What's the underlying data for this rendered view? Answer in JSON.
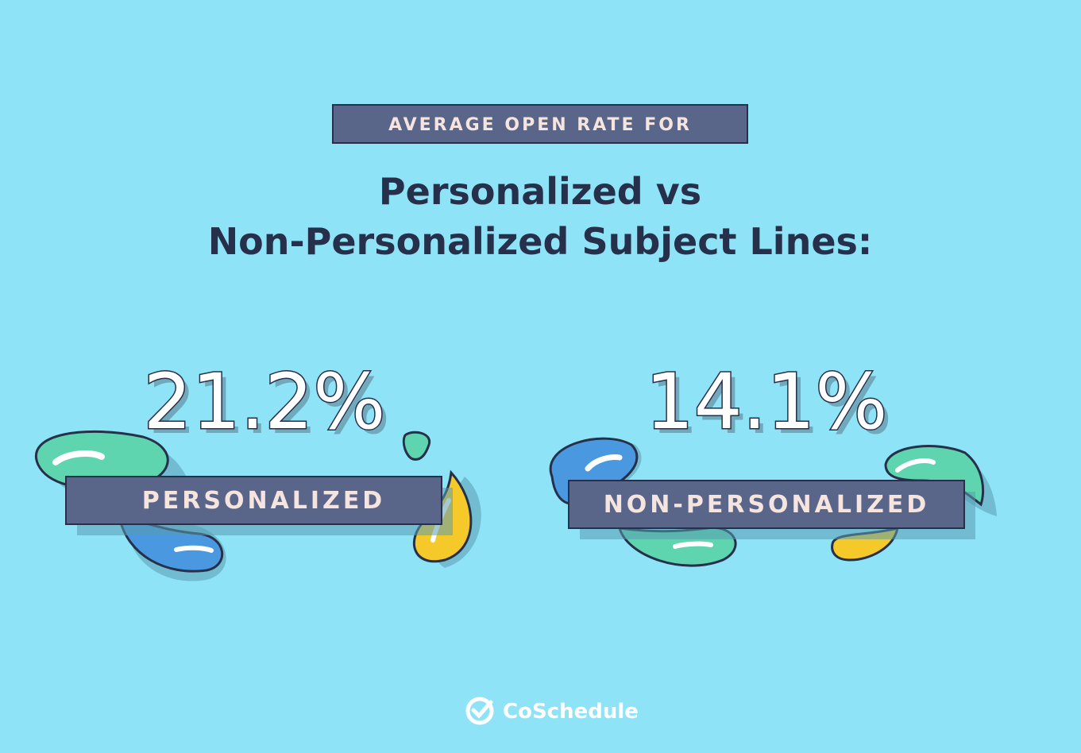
{
  "header": {
    "tag": "AVERAGE OPEN RATE FOR",
    "title_lines": [
      "Personalized vs",
      "Non-Personalized Subject Lines:"
    ]
  },
  "stats": [
    {
      "value": "21.2%",
      "label": "PERSONALIZED"
    },
    {
      "value": "14.1%",
      "label": "NON-PERSONALIZED"
    }
  ],
  "footer": {
    "brand": "CoSchedule"
  }
}
